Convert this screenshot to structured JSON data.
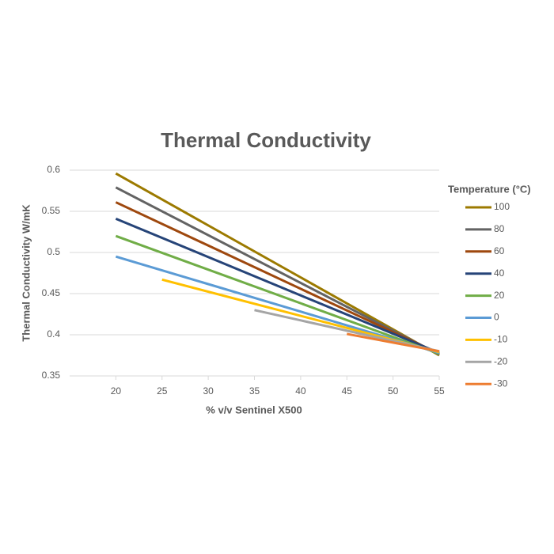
{
  "chart_data": {
    "type": "line",
    "title": "Thermal Conductivity",
    "x_label": "% v/v Sentinel X500",
    "y_label": "Thermal Conductivity W/mK",
    "legend_title": "Temperature (°C)",
    "legend_position": "right",
    "grid": true,
    "xlim": [
      15,
      55
    ],
    "xticks": [
      20,
      25,
      30,
      35,
      40,
      45,
      50,
      55
    ],
    "ylim": [
      0.35,
      0.6
    ],
    "yticks": [
      0.35,
      0.4,
      0.45,
      0.5,
      0.55,
      0.6
    ],
    "series": [
      {
        "name": "100",
        "color": "#9c7a00",
        "x": [
          20,
          55
        ],
        "values": [
          0.596,
          0.375
        ]
      },
      {
        "name": "80",
        "color": "#636363",
        "x": [
          20,
          55
        ],
        "values": [
          0.579,
          0.376
        ]
      },
      {
        "name": "60",
        "color": "#9e480e",
        "x": [
          20,
          55
        ],
        "values": [
          0.561,
          0.377
        ]
      },
      {
        "name": "40",
        "color": "#264478",
        "x": [
          20,
          55
        ],
        "values": [
          0.541,
          0.378
        ]
      },
      {
        "name": "20",
        "color": "#70ad47",
        "x": [
          20,
          55
        ],
        "values": [
          0.52,
          0.377
        ]
      },
      {
        "name": "0",
        "color": "#5b9bd5",
        "x": [
          20,
          55
        ],
        "values": [
          0.495,
          0.378
        ]
      },
      {
        "name": "-10",
        "color": "#ffc000",
        "x": [
          25,
          55
        ],
        "values": [
          0.467,
          0.379
        ]
      },
      {
        "name": "-20",
        "color": "#a5a5a5",
        "x": [
          35,
          55
        ],
        "values": [
          0.43,
          0.38
        ]
      },
      {
        "name": "-30",
        "color": "#ed7d31",
        "x": [
          45,
          55
        ],
        "values": [
          0.401,
          0.38
        ]
      }
    ]
  }
}
